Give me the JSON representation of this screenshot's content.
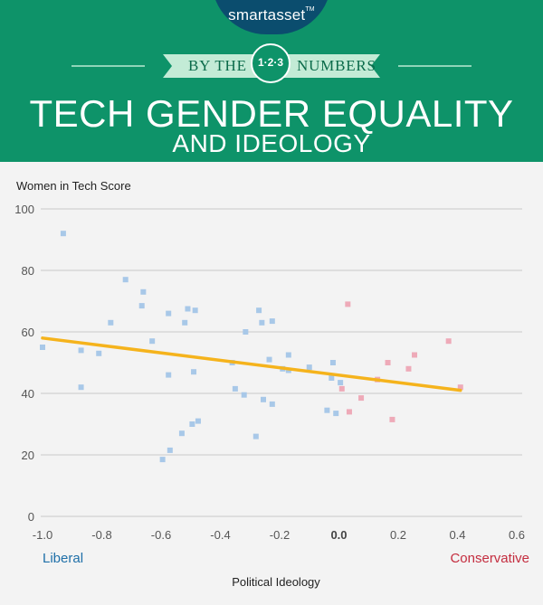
{
  "brand": {
    "name": "smartasset",
    "tm": "TM"
  },
  "banner": {
    "left": "BY THE",
    "badge": "1·2·3",
    "right": "NUMBERS"
  },
  "title": "TECH GENDER EQUALITY",
  "subtitle": "AND IDEOLOGY",
  "colors": {
    "header_bg": "#0e9369",
    "brand_tab": "#0b4d6e",
    "ribbon": "#c3ebd6",
    "liberal_point": "#a8c8e8",
    "conservative_point": "#eeaab8",
    "trend_line": "#f5b31c",
    "liberal_label": "#1e6fa8",
    "conservative_label": "#c42d3f"
  },
  "chart_data": {
    "type": "scatter",
    "ylabel": "Women in Tech Score",
    "xlabel": "Political Ideology",
    "xlim": [
      -1.0,
      0.6
    ],
    "ylim": [
      0,
      100
    ],
    "x_ticks": [
      "-1.0",
      "-0.8",
      "-0.6",
      "-0.4",
      "-0.2",
      "0.0",
      "0.2",
      "0.4",
      "0.6"
    ],
    "y_ticks": [
      "0",
      "20",
      "40",
      "60",
      "80",
      "100"
    ],
    "bold_tick": "0.0",
    "grid": "horizontal",
    "scale_labels": {
      "left": "Liberal",
      "right": "Conservative"
    },
    "series": [
      {
        "group": "liberal",
        "points": [
          [
            -1.0,
            55
          ],
          [
            -0.93,
            92
          ],
          [
            -0.87,
            54
          ],
          [
            -0.87,
            42
          ],
          [
            -0.81,
            53
          ],
          [
            -0.77,
            63
          ],
          [
            -0.72,
            77
          ],
          [
            -0.66,
            73
          ],
          [
            -0.665,
            68.5
          ],
          [
            -0.63,
            57
          ],
          [
            -0.595,
            18.5
          ],
          [
            -0.575,
            66
          ],
          [
            -0.575,
            46
          ],
          [
            -0.57,
            21.5
          ],
          [
            -0.53,
            27
          ],
          [
            -0.52,
            63
          ],
          [
            -0.51,
            67.5
          ],
          [
            -0.495,
            30
          ],
          [
            -0.49,
            47
          ],
          [
            -0.485,
            67
          ],
          [
            -0.475,
            31
          ],
          [
            -0.36,
            50
          ],
          [
            -0.35,
            41.5
          ],
          [
            -0.32,
            39.5
          ],
          [
            -0.315,
            60
          ],
          [
            -0.28,
            26
          ],
          [
            -0.27,
            67
          ],
          [
            -0.26,
            63
          ],
          [
            -0.255,
            38
          ],
          [
            -0.235,
            51
          ],
          [
            -0.225,
            63.5
          ],
          [
            -0.225,
            36.5
          ],
          [
            -0.19,
            48
          ],
          [
            -0.17,
            47.5
          ],
          [
            -0.17,
            52.5
          ],
          [
            -0.1,
            48.5
          ],
          [
            -0.04,
            34.5
          ],
          [
            -0.025,
            45
          ],
          [
            -0.02,
            50
          ],
          [
            -0.01,
            33.5
          ],
          [
            0.005,
            43.5
          ]
        ]
      },
      {
        "group": "conservative",
        "points": [
          [
            0.01,
            41.5
          ],
          [
            0.03,
            69
          ],
          [
            0.035,
            34
          ],
          [
            0.075,
            38.5
          ],
          [
            0.13,
            44.5
          ],
          [
            0.165,
            50
          ],
          [
            0.18,
            31.5
          ],
          [
            0.235,
            48
          ],
          [
            0.255,
            52.5
          ],
          [
            0.37,
            57
          ],
          [
            0.41,
            42
          ]
        ]
      }
    ],
    "trend_line": {
      "x": [
        -1.0,
        0.41
      ],
      "y": [
        58,
        41
      ]
    }
  }
}
